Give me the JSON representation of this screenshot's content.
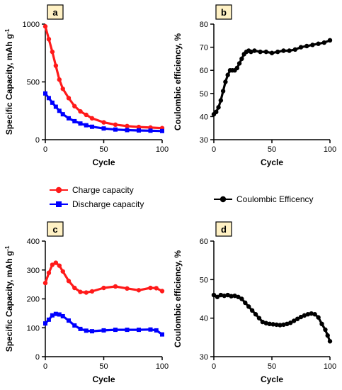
{
  "chart_data": [
    {
      "panel": "a",
      "type": "scatter",
      "xlabel": "Cycle",
      "ylabel": "Specific Capacity, mAh g",
      "ylabel_superscript": "-1",
      "xlim": [
        0,
        100
      ],
      "ylim": [
        0,
        1000
      ],
      "xticks": [
        "0",
        "50",
        "100"
      ],
      "yticks": [
        "0",
        "500",
        "1000"
      ],
      "series": [
        {
          "name": "Charge capacity",
          "color": "#ff1a1a",
          "marker": "circle",
          "x": [
            0,
            3,
            6,
            9,
            12,
            15,
            20,
            25,
            30,
            35,
            40,
            50,
            60,
            70,
            80,
            90,
            100
          ],
          "y": [
            980,
            870,
            760,
            640,
            520,
            440,
            360,
            290,
            245,
            215,
            185,
            150,
            130,
            118,
            110,
            105,
            100
          ]
        },
        {
          "name": "Discharge capacity",
          "color": "#0000ff",
          "marker": "square",
          "x": [
            0,
            3,
            6,
            9,
            12,
            15,
            20,
            25,
            30,
            35,
            40,
            50,
            60,
            70,
            80,
            90,
            100
          ],
          "y": [
            400,
            360,
            320,
            285,
            250,
            220,
            185,
            160,
            140,
            125,
            112,
            97,
            88,
            83,
            80,
            78,
            75
          ]
        }
      ]
    },
    {
      "panel": "b",
      "type": "line",
      "xlabel": "Cycle",
      "ylabel": "Coulombic efficiency, %",
      "xlim": [
        0,
        100
      ],
      "ylim": [
        30,
        80
      ],
      "xticks": [
        "0",
        "50",
        "100"
      ],
      "yticks": [
        "30",
        "40",
        "50",
        "60",
        "70",
        "80"
      ],
      "series": [
        {
          "name": "Coulombic Efficency",
          "color": "#000000",
          "marker": "circle",
          "x": [
            0,
            2,
            4,
            6,
            8,
            10,
            12,
            14,
            16,
            18,
            20,
            22,
            24,
            26,
            28,
            30,
            32,
            35,
            40,
            45,
            50,
            55,
            60,
            65,
            70,
            75,
            80,
            85,
            90,
            95,
            100
          ],
          "y": [
            41,
            42,
            44,
            47,
            51,
            55,
            58,
            60,
            60,
            60,
            61,
            63,
            65,
            67,
            68,
            68.5,
            68,
            68.5,
            68,
            68,
            67.5,
            68,
            68.5,
            68.5,
            69,
            70,
            70.5,
            71,
            71.5,
            72,
            73
          ]
        }
      ]
    },
    {
      "panel": "c",
      "type": "scatter",
      "xlabel": "Cycle",
      "ylabel": "Specific Capacity, mAh g",
      "ylabel_superscript": "-1",
      "xlim": [
        0,
        100
      ],
      "ylim": [
        0,
        400
      ],
      "xticks": [
        "0",
        "50",
        "100"
      ],
      "yticks": [
        "0",
        "100",
        "200",
        "300",
        "400"
      ],
      "series": [
        {
          "name": "Charge capacity",
          "color": "#ff1a1a",
          "marker": "circle",
          "x": [
            0,
            3,
            6,
            9,
            12,
            15,
            20,
            25,
            30,
            35,
            40,
            50,
            60,
            70,
            80,
            90,
            95,
            100
          ],
          "y": [
            255,
            290,
            318,
            325,
            315,
            295,
            262,
            238,
            224,
            222,
            226,
            238,
            243,
            236,
            230,
            238,
            237,
            227
          ]
        },
        {
          "name": "Discharge capacity",
          "color": "#0000ff",
          "marker": "square",
          "x": [
            0,
            3,
            6,
            9,
            12,
            15,
            20,
            25,
            30,
            35,
            40,
            50,
            60,
            70,
            80,
            90,
            95,
            100
          ],
          "y": [
            115,
            128,
            143,
            148,
            146,
            140,
            125,
            108,
            96,
            90,
            88,
            91,
            93,
            93,
            93,
            94,
            91,
            77
          ]
        }
      ]
    },
    {
      "panel": "d",
      "type": "line",
      "xlabel": "Cycle",
      "ylabel": "Coulombic efficiency, %",
      "xlim": [
        0,
        100
      ],
      "ylim": [
        30,
        60
      ],
      "xticks": [
        "0",
        "50",
        "100"
      ],
      "yticks": [
        "30",
        "40",
        "50",
        "60"
      ],
      "series": [
        {
          "name": "Coulombic Efficency",
          "color": "#000000",
          "marker": "circle",
          "x": [
            0,
            3,
            6,
            9,
            12,
            15,
            18,
            21,
            24,
            27,
            30,
            33,
            36,
            39,
            42,
            45,
            48,
            51,
            54,
            57,
            60,
            63,
            66,
            69,
            72,
            75,
            78,
            81,
            84,
            87,
            90,
            93,
            96,
            98,
            100
          ],
          "y": [
            46,
            45.5,
            46,
            45.8,
            46,
            45.7,
            45.8,
            45.5,
            45,
            44,
            43,
            42,
            41,
            40,
            39,
            38.7,
            38.5,
            38.4,
            38.3,
            38.2,
            38.3,
            38.5,
            38.8,
            39.3,
            39.8,
            40.3,
            40.7,
            41,
            41.2,
            41,
            40.2,
            38.5,
            37,
            35.5,
            34
          ]
        }
      ]
    }
  ],
  "legends": {
    "left": [
      {
        "label": "Charge capacity",
        "color": "#ff1a1a",
        "marker": "circle"
      },
      {
        "label": "Discharge capacity",
        "color": "#0000ff",
        "marker": "square"
      }
    ],
    "right": [
      {
        "label": "Coulombic Efficency",
        "color": "#000000",
        "marker": "circle"
      }
    ]
  },
  "panel_label_style": {
    "fill": "#fff1c4",
    "stroke": "#000000"
  }
}
